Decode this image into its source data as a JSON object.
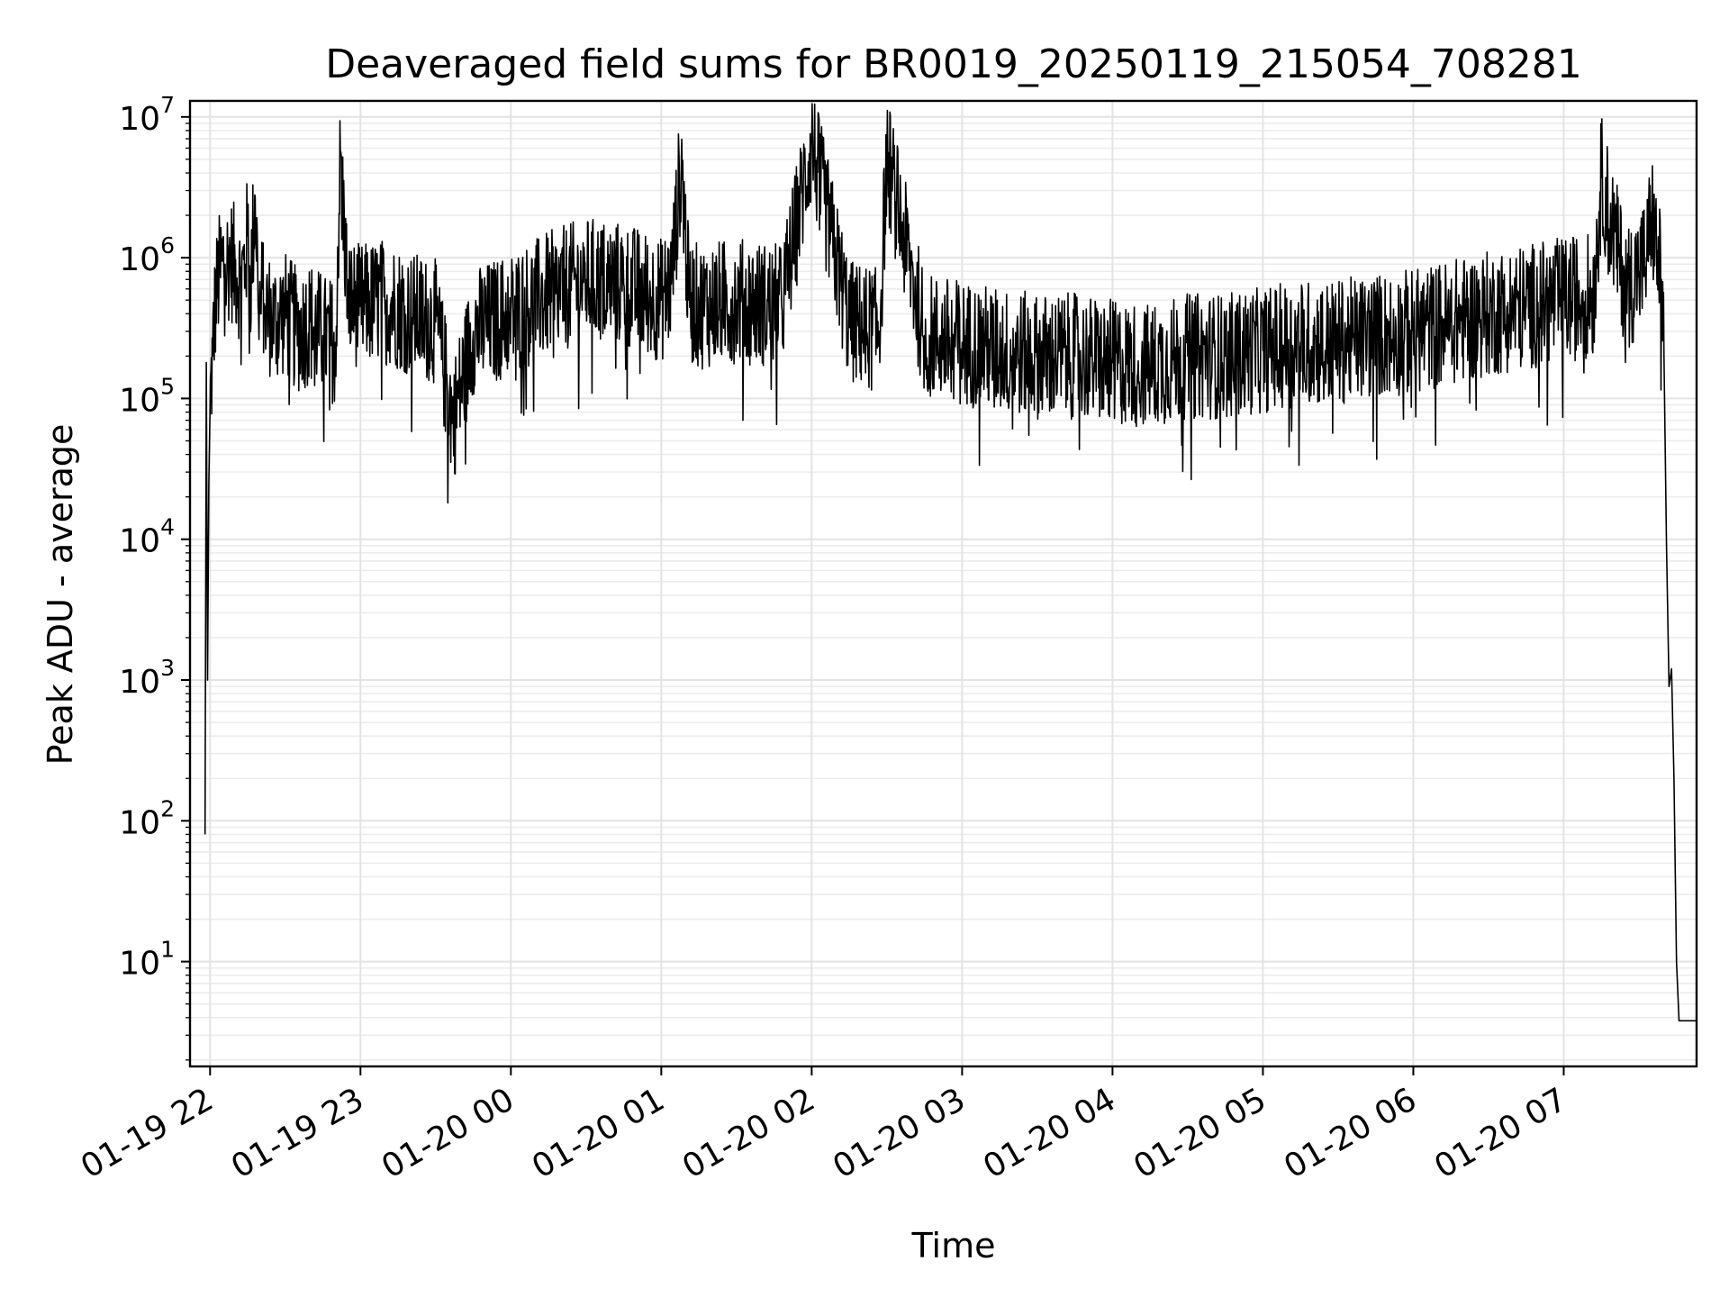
{
  "chart_data": {
    "type": "line",
    "title": "Deaveraged field sums for BR0019_20250119_215054_708281",
    "xlabel": "Time",
    "ylabel": "Peak ADU - average",
    "yscale": "log",
    "xlim": [
      "2025-01-19T21:52:00",
      "2025-01-20T07:53:00"
    ],
    "ylim": [
      1.8,
      13000000
    ],
    "grid": true,
    "grid_color": "#e3e3e3",
    "line_color": "#000000",
    "x_ticks": [
      {
        "t": "2025-01-19T22:00:00",
        "label": "01-19 22"
      },
      {
        "t": "2025-01-19T23:00:00",
        "label": "01-19 23"
      },
      {
        "t": "2025-01-20T00:00:00",
        "label": "01-20 00"
      },
      {
        "t": "2025-01-20T01:00:00",
        "label": "01-20 01"
      },
      {
        "t": "2025-01-20T02:00:00",
        "label": "01-20 02"
      },
      {
        "t": "2025-01-20T03:00:00",
        "label": "01-20 03"
      },
      {
        "t": "2025-01-20T04:00:00",
        "label": "01-20 04"
      },
      {
        "t": "2025-01-20T05:00:00",
        "label": "01-20 05"
      },
      {
        "t": "2025-01-20T06:00:00",
        "label": "01-20 06"
      },
      {
        "t": "2025-01-20T07:00:00",
        "label": "01-20 07"
      }
    ],
    "y_ticks": [
      {
        "value": 10,
        "base": "10",
        "exp": "1"
      },
      {
        "value": 100,
        "base": "10",
        "exp": "2"
      },
      {
        "value": 1000,
        "base": "10",
        "exp": "3"
      },
      {
        "value": 10000,
        "base": "10",
        "exp": "4"
      },
      {
        "value": 100000,
        "base": "10",
        "exp": "5"
      },
      {
        "value": 1000000,
        "base": "10",
        "exp": "6"
      },
      {
        "value": 10000000,
        "base": "10",
        "exp": "7"
      }
    ],
    "series": [
      {
        "x": [
          "2025-01-19T21:58:00",
          "2025-01-19T21:58:30",
          "2025-01-19T21:59:00",
          "2025-01-19T21:59:30",
          "2025-01-19T22:00:00",
          "2025-01-19T22:01:00",
          "2025-01-19T22:02:00",
          "2025-01-19T22:03:00",
          "2025-01-19T22:04:00",
          "2025-01-19T22:05:00",
          "2025-01-19T22:06:00",
          "2025-01-19T22:08:00",
          "2025-01-19T22:10:00",
          "2025-01-19T22:12:00",
          "2025-01-19T22:14:00",
          "2025-01-19T22:15:00",
          "2025-01-19T22:16:00",
          "2025-01-19T22:18:00",
          "2025-01-19T22:19:00",
          "2025-01-19T22:20:00",
          "2025-01-19T22:21:00",
          "2025-01-19T22:22:00",
          "2025-01-19T22:25:00",
          "2025-01-19T22:30:00",
          "2025-01-19T22:35:00",
          "2025-01-19T22:40:00",
          "2025-01-19T22:45:00",
          "2025-01-19T22:50:00",
          "2025-01-19T22:52:00",
          "2025-01-19T22:55:00",
          "2025-01-19T23:00:00",
          "2025-01-19T23:10:00",
          "2025-01-19T23:20:00",
          "2025-01-19T23:30:00",
          "2025-01-19T23:37:00",
          "2025-01-19T23:45:00",
          "2025-01-20T00:00:00",
          "2025-01-20T00:15:00",
          "2025-01-20T00:30:00",
          "2025-01-20T00:45:00",
          "2025-01-20T01:00:00",
          "2025-01-20T01:04:00",
          "2025-01-20T01:08:00",
          "2025-01-20T01:11:00",
          "2025-01-20T01:15:00",
          "2025-01-20T01:30:00",
          "2025-01-20T01:48:00",
          "2025-01-20T02:00:00",
          "2025-01-20T02:15:00",
          "2025-01-20T02:27:00",
          "2025-01-20T02:30:00",
          "2025-01-20T02:45:00",
          "2025-01-20T03:00:00",
          "2025-01-20T03:15:00",
          "2025-01-20T03:30:00",
          "2025-01-20T03:45:00",
          "2025-01-20T04:00:00",
          "2025-01-20T04:15:00",
          "2025-01-20T04:30:00",
          "2025-01-20T04:45:00",
          "2025-01-20T05:00:00",
          "2025-01-20T05:15:00",
          "2025-01-20T05:30:00",
          "2025-01-20T05:45:00",
          "2025-01-20T06:00:00",
          "2025-01-20T06:15:00",
          "2025-01-20T06:30:00",
          "2025-01-20T06:45:00",
          "2025-01-20T07:00:00",
          "2025-01-20T07:12:00",
          "2025-01-20T07:15:00",
          "2025-01-20T07:25:00",
          "2025-01-20T07:30:00",
          "2025-01-20T07:33:00",
          "2025-01-20T07:35:00",
          "2025-01-20T07:37:00",
          "2025-01-20T07:39:00",
          "2025-01-20T07:40:00",
          "2025-01-20T07:41:00",
          "2025-01-20T07:42:00",
          "2025-01-20T07:43:00",
          "2025-01-20T07:44:00",
          "2025-01-20T07:45:00",
          "2025-01-20T07:46:00",
          "2025-01-20T07:47:00",
          "2025-01-20T07:53:00"
        ],
        "y": [
          80,
          180000,
          1000,
          25000,
          90000,
          200000,
          450000,
          650000,
          800000,
          950000,
          900000,
          1000000,
          850000,
          700000,
          900000,
          1500000,
          600000,
          2700000,
          800000,
          400000,
          600000,
          450000,
          350000,
          400000,
          300000,
          350000,
          280000,
          250000,
          5300000,
          500000,
          450000,
          500000,
          400000,
          350000,
          70000,
          300000,
          400000,
          550000,
          700000,
          650000,
          500000,
          650000,
          5100000,
          500000,
          450000,
          500000,
          450000,
          6600000,
          350000,
          300000,
          5300000,
          280000,
          250000,
          220000,
          200000,
          200000,
          180000,
          170000,
          200000,
          200000,
          220000,
          250000,
          250000,
          280000,
          300000,
          350000,
          400000,
          450000,
          500000,
          550000,
          3700000,
          600000,
          800000,
          1000000,
          2100000,
          1100000,
          700000,
          200000,
          9000,
          900,
          1200,
          200,
          10,
          3.8,
          3.8,
          3.8
        ]
      }
    ]
  }
}
